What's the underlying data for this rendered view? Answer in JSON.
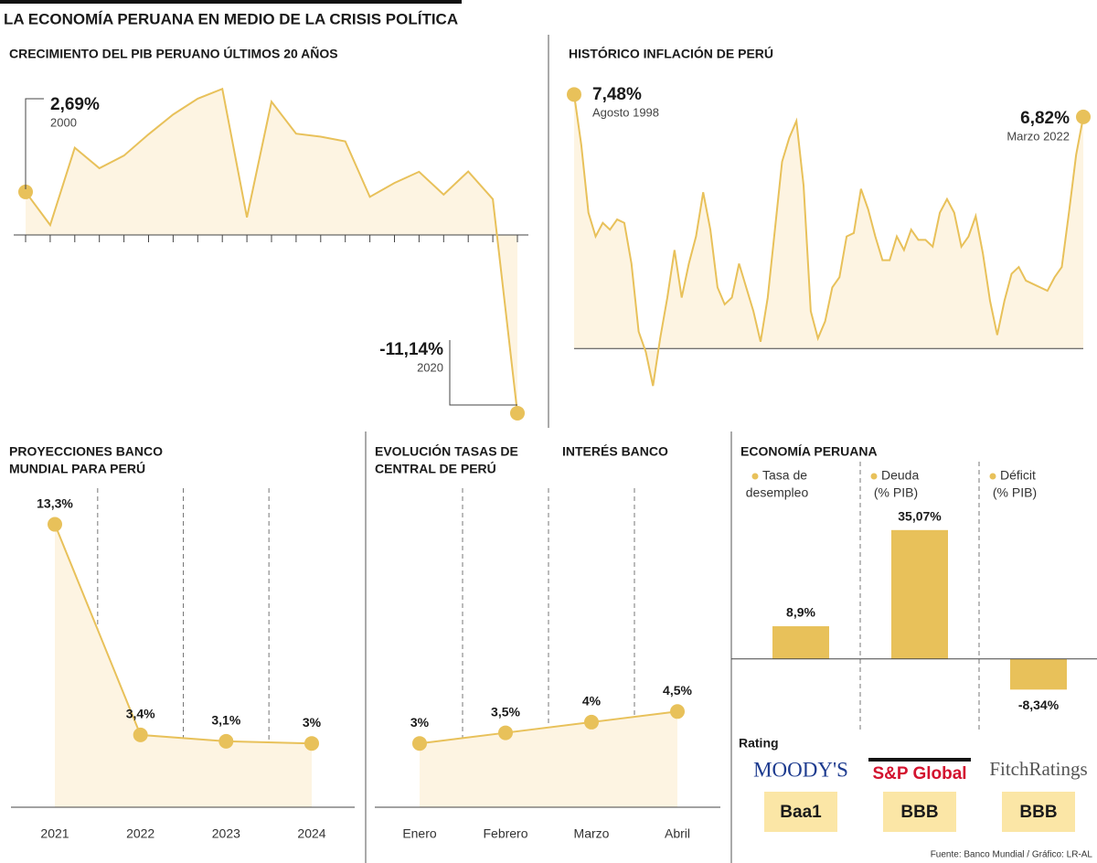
{
  "title": "LA ECONOMÍA PERUANA EN MEDIO DE LA CRISIS POLÍTICA",
  "source": "Fuente: Banco Mundial / Gráfico: LR-AL",
  "rating": {
    "title": "Rating",
    "agencies": [
      {
        "name": "MOODY'S",
        "grade": "Baa1"
      },
      {
        "name": "S&P Global",
        "grade": "BBB"
      },
      {
        "name": "FitchRatings",
        "grade": "BBB"
      }
    ]
  },
  "chart_data": [
    {
      "type": "line",
      "title": [
        "CRECIMIENTO DEL PIB PERUANO ÚLTIMOS 20 AÑOS"
      ],
      "categories": [
        "2000",
        null,
        null,
        null,
        null,
        null,
        null,
        null,
        null,
        null,
        null,
        null,
        null,
        null,
        null,
        null,
        null,
        null,
        null,
        null,
        "2020"
      ],
      "values": [
        2.69,
        0.62,
        5.45,
        4.17,
        4.96,
        6.29,
        7.53,
        8.52,
        9.13,
        1.1,
        8.33,
        6.33,
        6.14,
        5.85,
        2.38,
        3.25,
        3.95,
        2.52,
        3.97,
        2.24,
        -11.14
      ],
      "value_labels": [
        "2,69%",
        null,
        null,
        null,
        null,
        null,
        null,
        null,
        null,
        null,
        null,
        null,
        null,
        null,
        null,
        null,
        null,
        null,
        null,
        null,
        "-11,14%"
      ],
      "ylim": [
        -12,
        10
      ],
      "color": "#e8c15a",
      "area_color": "#fdf4e2",
      "markers": "ends"
    },
    {
      "type": "line",
      "title": [
        "HISTÓRICO INFLACIÓN DE PERÚ"
      ],
      "categories": [
        "Agosto 1998",
        null,
        null,
        null,
        null,
        null,
        null,
        null,
        null,
        null,
        null,
        null,
        null,
        null,
        null,
        null,
        null,
        null,
        null,
        null,
        null,
        null,
        null,
        null,
        null,
        null,
        null,
        null,
        null,
        null,
        null,
        null,
        null,
        null,
        null,
        null,
        null,
        null,
        null,
        null,
        null,
        null,
        null,
        null,
        null,
        null,
        null,
        null,
        null,
        null,
        null,
        null,
        null,
        null,
        null,
        null,
        null,
        null,
        null,
        null,
        null,
        null,
        null,
        null,
        null,
        null,
        null,
        null,
        null,
        null,
        null,
        "Marzo 2022"
      ],
      "values": [
        7.48,
        6.0,
        4.0,
        3.3,
        3.7,
        3.5,
        3.8,
        3.7,
        2.5,
        0.5,
        -0.1,
        -1.1,
        0.3,
        1.5,
        2.9,
        1.5,
        2.5,
        3.3,
        4.6,
        3.5,
        1.8,
        1.3,
        1.5,
        2.5,
        1.8,
        1.1,
        0.2,
        1.5,
        3.5,
        5.5,
        6.2,
        6.7,
        4.8,
        1.1,
        0.3,
        0.8,
        1.8,
        2.1,
        3.3,
        3.4,
        4.7,
        4.1,
        3.3,
        2.6,
        2.6,
        3.3,
        2.9,
        3.5,
        3.2,
        3.2,
        3.0,
        4.0,
        4.4,
        4.0,
        3.0,
        3.3,
        3.9,
        2.8,
        1.4,
        0.4,
        1.4,
        2.2,
        2.4,
        2.0,
        1.9,
        1.8,
        1.7,
        2.1,
        2.4,
        4.0,
        5.7,
        6.82
      ],
      "value_labels": [
        "7,48%",
        null,
        null,
        null,
        null,
        null,
        null,
        null,
        null,
        null,
        null,
        null,
        null,
        null,
        null,
        null,
        null,
        null,
        null,
        null,
        null,
        null,
        null,
        null,
        null,
        null,
        null,
        null,
        null,
        null,
        null,
        null,
        null,
        null,
        null,
        null,
        null,
        null,
        null,
        null,
        null,
        null,
        null,
        null,
        null,
        null,
        null,
        null,
        null,
        null,
        null,
        null,
        null,
        null,
        null,
        null,
        null,
        null,
        null,
        null,
        null,
        null,
        null,
        null,
        null,
        null,
        null,
        null,
        null,
        null,
        null,
        "6,82%"
      ],
      "ylim": [
        -1.5,
        8
      ],
      "color": "#e8c15a",
      "area_color": "#fdf4e2",
      "markers": "ends"
    },
    {
      "type": "line",
      "title": [
        "PROYECCIONES BANCO",
        "MUNDIAL PARA PERÚ"
      ],
      "categories": [
        "2021",
        "2022",
        "2023",
        "2024"
      ],
      "values": [
        13.3,
        3.4,
        3.1,
        3
      ],
      "value_labels": [
        "13,3%",
        "3,4%",
        "3,1%",
        "3%"
      ],
      "ylim": [
        0,
        15
      ],
      "color": "#e8c15a",
      "area_color": "#fdf4e2",
      "markers": "all"
    },
    {
      "type": "line",
      "title": [
        "EVOLUCIÓN  TASAS DE",
        "INTERÉS BANCO",
        "CENTRAL DE PERÚ"
      ],
      "categories": [
        "Enero",
        "Febrero",
        "Marzo",
        "Abril"
      ],
      "values": [
        3,
        3.5,
        4,
        4.5
      ],
      "value_labels": [
        "3%",
        "3,5%",
        "4%",
        "4,5%"
      ],
      "ylim": [
        0,
        15
      ],
      "color": "#e8c15a",
      "area_color": "#fdf4e2",
      "markers": "all"
    },
    {
      "type": "bar",
      "title": [
        "ECONOMÍA PERUANA"
      ],
      "categories": [
        [
          "Tasa de",
          "desempleo"
        ],
        [
          "Deuda",
          "(% PIB)"
        ],
        [
          "Déficit",
          "(% PIB)"
        ]
      ],
      "values": [
        8.9,
        35.07,
        -8.34
      ],
      "value_labels": [
        "8,9%",
        "35,07%",
        "-8,34%"
      ],
      "ylim": [
        -10,
        40
      ],
      "color": "#e8c15a"
    }
  ]
}
